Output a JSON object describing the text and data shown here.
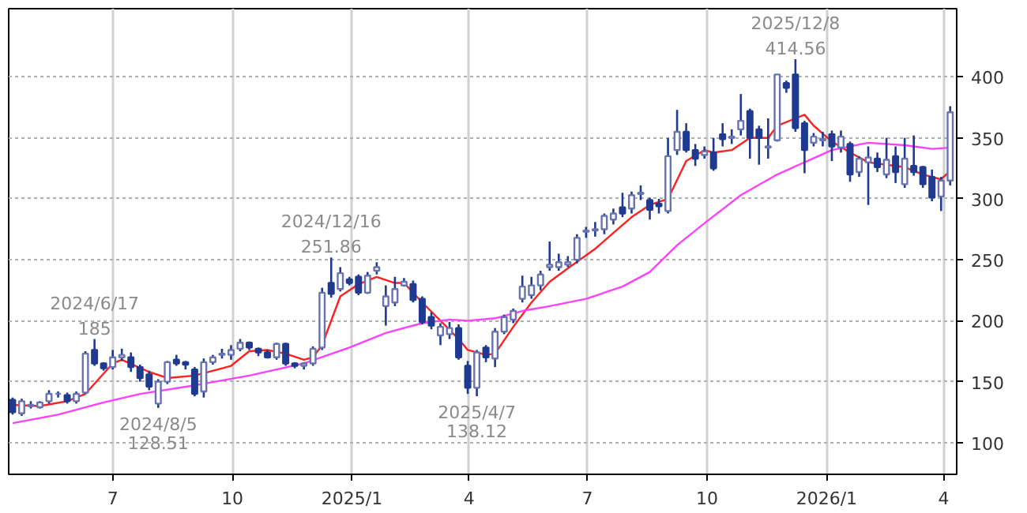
{
  "chart_data": {
    "type": "candlestick",
    "x": [
      "2024-04-15",
      "2024-04-22",
      "2024-04-29",
      "2024-05-06",
      "2024-05-13",
      "2024-05-20",
      "2024-05-27",
      "2024-06-03",
      "2024-06-10",
      "2024-06-17",
      "2024-06-24",
      "2024-07-01",
      "2024-07-08",
      "2024-07-15",
      "2024-07-22",
      "2024-07-29",
      "2024-08-05",
      "2024-08-12",
      "2024-08-19",
      "2024-08-26",
      "2024-09-02",
      "2024-09-09",
      "2024-09-16",
      "2024-09-23",
      "2024-09-30",
      "2024-10-07",
      "2024-10-14",
      "2024-10-21",
      "2024-10-28",
      "2024-11-04",
      "2024-11-11",
      "2024-11-18",
      "2024-11-25",
      "2024-12-02",
      "2024-12-09",
      "2024-12-16",
      "2024-12-23",
      "2024-12-30",
      "2025-01-06",
      "2025-01-13",
      "2025-01-20",
      "2025-01-27",
      "2025-02-03",
      "2025-02-10",
      "2025-02-17",
      "2025-02-24",
      "2025-03-03",
      "2025-03-10",
      "2025-03-17",
      "2025-03-24",
      "2025-03-31",
      "2025-04-07",
      "2025-04-14",
      "2025-04-21",
      "2025-04-28",
      "2025-05-05",
      "2025-05-12",
      "2025-05-19",
      "2025-05-26",
      "2025-06-02",
      "2025-06-09",
      "2025-06-16",
      "2025-06-23",
      "2025-06-30",
      "2025-07-07",
      "2025-07-14",
      "2025-07-21",
      "2025-07-28",
      "2025-08-04",
      "2025-08-11",
      "2025-08-18",
      "2025-08-25",
      "2025-09-01",
      "2025-09-08",
      "2025-09-15",
      "2025-09-22",
      "2025-09-29",
      "2025-10-06",
      "2025-10-13",
      "2025-10-20",
      "2025-10-27",
      "2025-11-03",
      "2025-11-10",
      "2025-11-17",
      "2025-11-24",
      "2025-12-01",
      "2025-12-08",
      "2025-12-15",
      "2025-12-22",
      "2025-12-29",
      "2026-01-05",
      "2026-01-12",
      "2026-01-19",
      "2026-01-26",
      "2026-02-02",
      "2026-02-09",
      "2026-02-16",
      "2026-02-23",
      "2026-03-02",
      "2026-03-09",
      "2026-03-16",
      "2026-03-23",
      "2026-03-30",
      "2026-04-06"
    ],
    "ohlc": [
      [
        135,
        137,
        123,
        125
      ],
      [
        124,
        136,
        122,
        134
      ],
      [
        130,
        134,
        128,
        131
      ],
      [
        129,
        134,
        128,
        133
      ],
      [
        134,
        143,
        132,
        140
      ],
      [
        140,
        142,
        137,
        140
      ],
      [
        139,
        141,
        132,
        134
      ],
      [
        134,
        142,
        132,
        140
      ],
      [
        141,
        175,
        140,
        173
      ],
      [
        176,
        185,
        163,
        165
      ],
      [
        165,
        166,
        159,
        161
      ],
      [
        162,
        176,
        160,
        170
      ],
      [
        170,
        177,
        167,
        172
      ],
      [
        170,
        174,
        158,
        162
      ],
      [
        162,
        164,
        150,
        153
      ],
      [
        156,
        159,
        143,
        146
      ],
      [
        132,
        152,
        128.51,
        150
      ],
      [
        150,
        167,
        148,
        166
      ],
      [
        168,
        172,
        163,
        165
      ],
      [
        166,
        167,
        160,
        164
      ],
      [
        160,
        162,
        138,
        140
      ],
      [
        142,
        169,
        137,
        166
      ],
      [
        166,
        172,
        164,
        170
      ],
      [
        172,
        177,
        169,
        173
      ],
      [
        172,
        180,
        168,
        176
      ],
      [
        177,
        185,
        175,
        182
      ],
      [
        182,
        183,
        176,
        178
      ],
      [
        177,
        178,
        171,
        174
      ],
      [
        174,
        176,
        169,
        170
      ],
      [
        170,
        182,
        168,
        181
      ],
      [
        181,
        182,
        163,
        165
      ],
      [
        165,
        166,
        161,
        163
      ],
      [
        163,
        166,
        160,
        165
      ],
      [
        165,
        179,
        163,
        177
      ],
      [
        178,
        227,
        176,
        223
      ],
      [
        231,
        251.86,
        219,
        222
      ],
      [
        226,
        244,
        224,
        239
      ],
      [
        234,
        236,
        229,
        231
      ],
      [
        236,
        238,
        221,
        223
      ],
      [
        223,
        240,
        222,
        237
      ],
      [
        241,
        248,
        238,
        244
      ],
      [
        212,
        229,
        196,
        220
      ],
      [
        215,
        236,
        212,
        226
      ],
      [
        229,
        235,
        228,
        232
      ],
      [
        230,
        233,
        215,
        217
      ],
      [
        218,
        220,
        197,
        199
      ],
      [
        203,
        207,
        193,
        196
      ],
      [
        188,
        198,
        180,
        195
      ],
      [
        189,
        199,
        185,
        194
      ],
      [
        194,
        197,
        168,
        170
      ],
      [
        163,
        167,
        140,
        145
      ],
      [
        145,
        176,
        138.12,
        174
      ],
      [
        178,
        180,
        166,
        170
      ],
      [
        169,
        194,
        162,
        191
      ],
      [
        191,
        205,
        189,
        203
      ],
      [
        201,
        210,
        198,
        208
      ],
      [
        218,
        237,
        215,
        228
      ],
      [
        221,
        236,
        218,
        229
      ],
      [
        229,
        241,
        225,
        238
      ],
      [
        244,
        265,
        241,
        246
      ],
      [
        244,
        255,
        241,
        248
      ],
      [
        246,
        253,
        244,
        248
      ],
      [
        250,
        271,
        247,
        268
      ],
      [
        273,
        277,
        268,
        274
      ],
      [
        274,
        281,
        269,
        275
      ],
      [
        275,
        288,
        271,
        286
      ],
      [
        283,
        292,
        279,
        288
      ],
      [
        293,
        305,
        285,
        288
      ],
      [
        292,
        306,
        288,
        303
      ],
      [
        304,
        311,
        299,
        305
      ],
      [
        299,
        301,
        283,
        291
      ],
      [
        296,
        300,
        288,
        294
      ],
      [
        290,
        350,
        288,
        335
      ],
      [
        340,
        373,
        336,
        355
      ],
      [
        355,
        362,
        338,
        340
      ],
      [
        340,
        345,
        327,
        333
      ],
      [
        336,
        343,
        333,
        339
      ],
      [
        338,
        350,
        323,
        325
      ],
      [
        353,
        362,
        343,
        349
      ],
      [
        350,
        357,
        345,
        351
      ],
      [
        357,
        386,
        352,
        364
      ],
      [
        372,
        374,
        333,
        350
      ],
      [
        357,
        360,
        328,
        350
      ],
      [
        342,
        366,
        333,
        343
      ],
      [
        348,
        402,
        347,
        402
      ],
      [
        395,
        397,
        387,
        391
      ],
      [
        402,
        414.56,
        355,
        358
      ],
      [
        362,
        364,
        321,
        340
      ],
      [
        346,
        354,
        343,
        351
      ],
      [
        348,
        355,
        343,
        349
      ],
      [
        353,
        356,
        331,
        343
      ],
      [
        342,
        356,
        338,
        351
      ],
      [
        345,
        347,
        314,
        320
      ],
      [
        322,
        335,
        318,
        333
      ],
      [
        330,
        343,
        295,
        334
      ],
      [
        333,
        338,
        322,
        326
      ],
      [
        320,
        350,
        317,
        332
      ],
      [
        335,
        343,
        313,
        322
      ],
      [
        312,
        350,
        309,
        333
      ],
      [
        327,
        352,
        319,
        322
      ],
      [
        326,
        327,
        309,
        312
      ],
      [
        318,
        324,
        298,
        301
      ],
      [
        302,
        318,
        290,
        315
      ],
      [
        315,
        376,
        311,
        371
      ]
    ],
    "series": [
      {
        "type": "line",
        "color": "#ff2020",
        "x": [
          "2024-04-15",
          "2024-05-06",
          "2024-05-27",
          "2024-06-10",
          "2024-07-01",
          "2024-07-08",
          "2024-07-29",
          "2024-08-12",
          "2024-09-02",
          "2024-09-09",
          "2024-09-30",
          "2024-10-14",
          "2024-10-28",
          "2024-11-11",
          "2024-11-25",
          "2024-12-02",
          "2024-12-09",
          "2024-12-23",
          "2025-01-06",
          "2025-01-20",
          "2025-02-03",
          "2025-02-10",
          "2025-02-24",
          "2025-03-10",
          "2025-03-24",
          "2025-03-31",
          "2025-04-14",
          "2025-04-21",
          "2025-05-05",
          "2025-05-19",
          "2025-06-02",
          "2025-06-16",
          "2025-07-07",
          "2025-07-21",
          "2025-08-04",
          "2025-08-18",
          "2025-09-01",
          "2025-09-15",
          "2025-09-29",
          "2025-10-06",
          "2025-10-20",
          "2025-11-03",
          "2025-11-17",
          "2025-11-24",
          "2025-12-08",
          "2025-12-15",
          "2025-12-22",
          "2026-01-05",
          "2026-01-19",
          "2026-02-02",
          "2026-02-16",
          "2026-03-02",
          "2026-03-16",
          "2026-03-30",
          "2026-04-06"
        ],
        "values": [
          131,
          130,
          134,
          140,
          165,
          168,
          158,
          153,
          155,
          157,
          163,
          175,
          176,
          173,
          168,
          170,
          180,
          220,
          230,
          236,
          231,
          231,
          215,
          200,
          185,
          176,
          172,
          173,
          195,
          215,
          232,
          243,
          259,
          272,
          285,
          295,
          300,
          331,
          340,
          338,
          340,
          350,
          350,
          360,
          366,
          369,
          360,
          347,
          338,
          330,
          328,
          326,
          320,
          316,
          323
        ]
      },
      {
        "type": "line",
        "color": "#ff40ff",
        "x": [
          "2024-04-15",
          "2024-05-20",
          "2024-06-24",
          "2024-07-22",
          "2024-09-02",
          "2024-10-14",
          "2024-11-25",
          "2024-12-30",
          "2025-01-27",
          "2025-02-24",
          "2025-03-17",
          "2025-03-31",
          "2025-04-21",
          "2025-05-12",
          "2025-06-02",
          "2025-06-30",
          "2025-07-28",
          "2025-08-18",
          "2025-09-08",
          "2025-09-29",
          "2025-10-27",
          "2025-11-24",
          "2025-12-15",
          "2026-01-05",
          "2026-02-02",
          "2026-03-02",
          "2026-03-23",
          "2026-04-06"
        ],
        "values": [
          116,
          123,
          133,
          140,
          147,
          155,
          165,
          178,
          190,
          198,
          201,
          200,
          202,
          208,
          212,
          218,
          228,
          240,
          262,
          280,
          303,
          320,
          330,
          340,
          346,
          344,
          341,
          342
        ]
      }
    ],
    "xlim": [
      "2024-04-12",
      "2026-04-11"
    ],
    "xticks": [
      {
        "value": "2024-07-01",
        "label": "7"
      },
      {
        "value": "2024-10-01",
        "label": "10"
      },
      {
        "value": "2025-01-01",
        "label": "2025/1"
      },
      {
        "value": "2025-04-01",
        "label": "4"
      },
      {
        "value": "2025-07-01",
        "label": "7"
      },
      {
        "value": "2025-10-01",
        "label": "10"
      },
      {
        "value": "2026-01-01",
        "label": "2026/1"
      },
      {
        "value": "2026-04-01",
        "label": "4"
      }
    ],
    "ylim": [
      74,
      456
    ],
    "yticks": [
      100,
      150,
      200,
      250,
      300,
      350,
      400
    ],
    "grid": true,
    "annotations": [
      {
        "text": "2024/6/17\n185",
        "x": "2024-06-17",
        "y": 185
      },
      {
        "text": "2024/8/5\n128.51",
        "x": "2024-08-05",
        "y": 128.51
      },
      {
        "text": "2024/12/16\n251.86",
        "x": "2024-12-16",
        "y": 251.86
      },
      {
        "text": "2025/4/7\n138.12",
        "x": "2025-04-07",
        "y": 138.12
      },
      {
        "text": "2025/12/8\n414.56",
        "x": "2025-12-08",
        "y": 414.56
      }
    ]
  }
}
